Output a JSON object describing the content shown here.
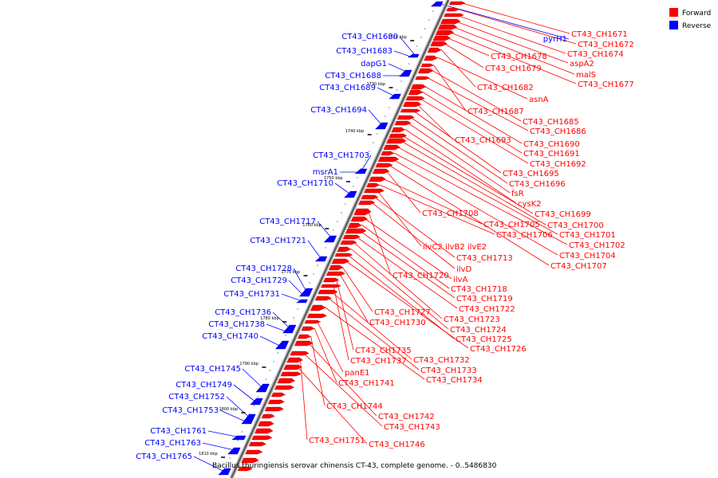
{
  "title": "Bacillus thuringiensis serovar chinensis CT-43, complete genome. - 0..5486830",
  "legend": {
    "forward": {
      "label": "Forward",
      "color": "#ff0000"
    },
    "reverse": {
      "label": "Reverse",
      "color": "#0000ff"
    }
  },
  "ticks": [
    "1720 kbp",
    "1730 kbp",
    "1740 kbp",
    "1750 kbp",
    "1760 kbp",
    "1770 kbp",
    "1780 kbp",
    "1790 kbp",
    "1800 kbp",
    "1810 kbp"
  ],
  "forward_genes": [
    "CT43_CH1671",
    "CT43_CH1672",
    "CT43_CH1674",
    "aspA2",
    "malS",
    "CT43_CH1677",
    "CT43_CH1678",
    "CT43_CH1679",
    "CT43_CH1682",
    "asnA",
    "CT43_CH1687",
    "CT43_CH1685",
    "CT43_CH1686",
    "CT43_CH1690",
    "CT43_CH1691",
    "CT43_CH1692",
    "CT43_CH1693",
    "CT43_CH1695",
    "CT43_CH1696",
    "fsR",
    "cysK2",
    "CT43_CH1699",
    "CT43_CH1700",
    "CT43_CH1701",
    "CT43_CH1702",
    "CT43_CH1704",
    "CT43_CH1707",
    "CT43_CH1708",
    "CT43_CH1705",
    "CT43_CH1706",
    "ilvC2 ilvB2 ilvE2",
    "CT43_CH1713",
    "ilvD",
    "CT43_CH1720",
    "ilvA",
    "CT43_CH1718",
    "CT43_CH1719",
    "CT43_CH1722",
    "CT43_CH1723",
    "CT43_CH1724",
    "CT43_CH1725",
    "CT43_CH1726",
    "CT43_CH1727",
    "CT43_CH1730",
    "CT43_CH1735",
    "CT43_CH1737",
    "CT43_CH1732",
    "CT43_CH1733",
    "CT43_CH1734",
    "panE1",
    "CT43_CH1741",
    "CT43_CH1744",
    "CT43_CH1742",
    "CT43_CH1743",
    "CT43_CH1751",
    "CT43_CH1746"
  ],
  "reverse_genes": [
    "pyrH1",
    "CT43_CH1680",
    "CT43_CH1683",
    "dapG1",
    "CT43_CH1688",
    "CT43_CH1689",
    "CT43_CH1694",
    "CT43_CH1703",
    "msrA1",
    "CT43_CH1710",
    "CT43_CH1717",
    "CT43_CH1721",
    "CT43_CH1728",
    "CT43_CH1729",
    "CT43_CH1731",
    "CT43_CH1736",
    "CT43_CH1738",
    "CT43_CH1740",
    "CT43_CH1745",
    "CT43_CH1749",
    "CT43_CH1752",
    "CT43_CH1753",
    "CT43_CH1761",
    "CT43_CH1763",
    "CT43_CH1765"
  ]
}
